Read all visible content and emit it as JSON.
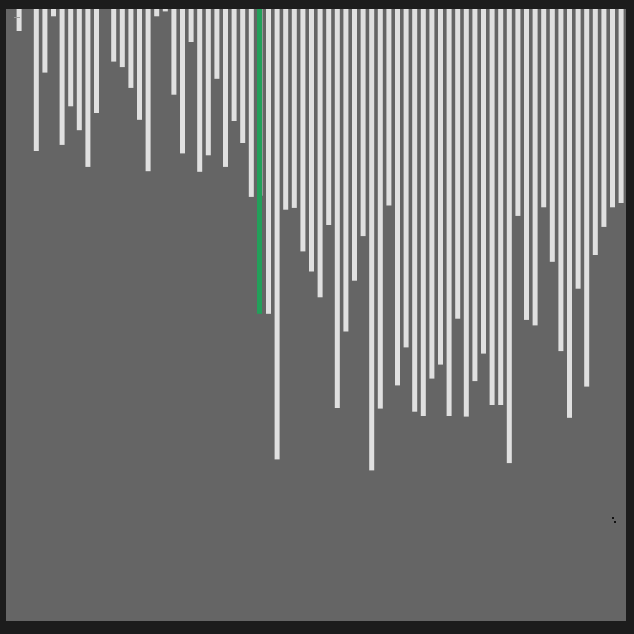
{
  "visualization": {
    "type": "bar-sort-visualizer",
    "bar_color": "#e0e0e0",
    "highlight_color": "#22a05a",
    "background_color": "#656565",
    "frame_color": "#1c1c1c",
    "value_max": 100,
    "values": [
      0,
      3.6,
      0,
      23.2,
      10.4,
      1.2,
      22.2,
      15.9,
      19.8,
      25.8,
      17,
      0,
      8.6,
      9.5,
      12.9,
      18.1,
      26.5,
      1.2,
      0.4,
      14,
      23.6,
      5.4,
      26.6,
      23.9,
      11.4,
      25.8,
      18.3,
      21.9,
      30.7,
      30.5,
      49.8,
      73.6,
      32.8,
      32.5,
      39.6,
      42.9,
      47.1,
      35.3,
      65.2,
      52.7,
      44.4,
      37.1,
      75.4,
      65.3,
      32.1,
      61.5,
      55.3,
      65.8,
      66.5,
      60.4,
      58.1,
      66.5,
      50.6,
      66.6,
      60.8,
      56.3,
      64.7,
      64.7,
      74.2,
      33.8,
      50.8,
      51.7,
      32.4,
      41.3,
      55.9,
      66.8,
      45.7,
      61.7,
      40.2,
      35.6,
      32.4,
      31.7
    ],
    "highlight_index": 30,
    "highlight_value": 49.8
  }
}
